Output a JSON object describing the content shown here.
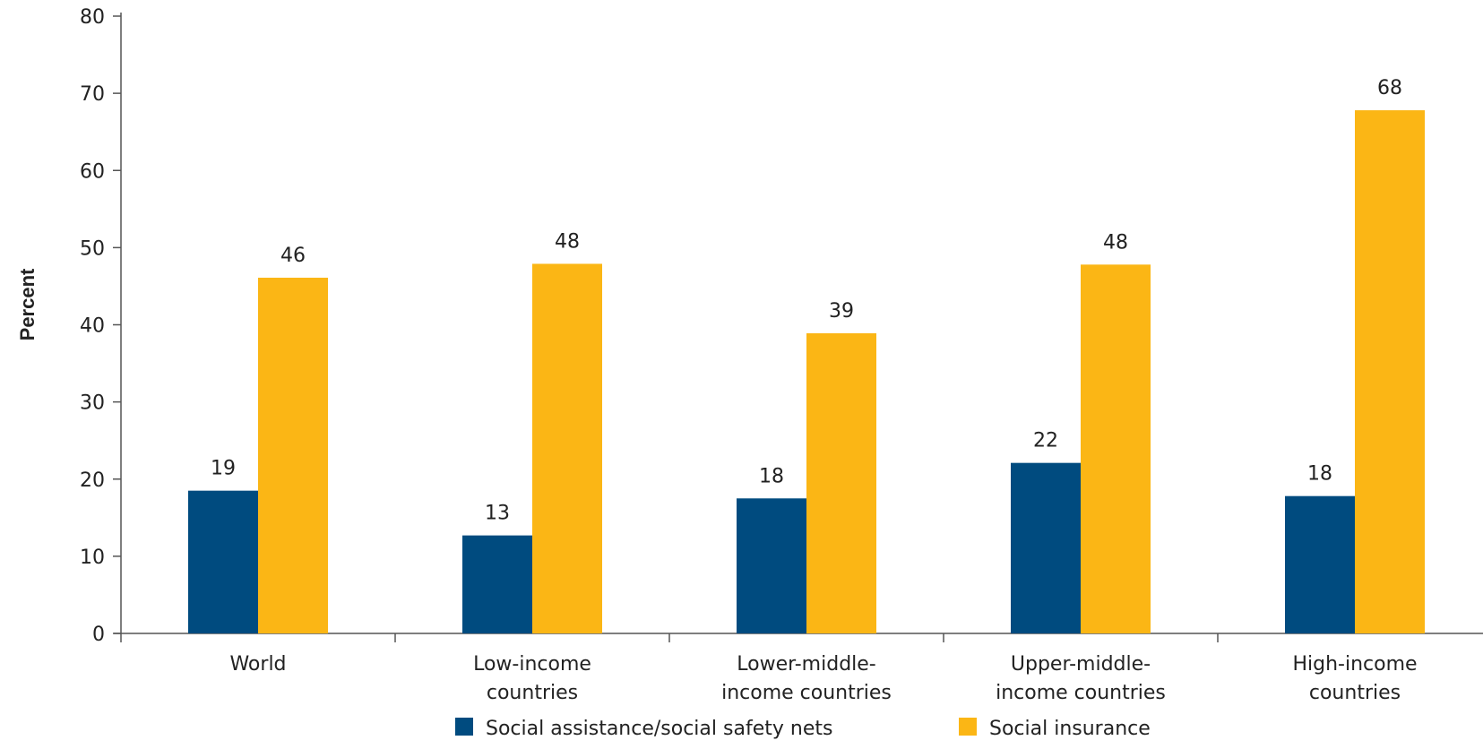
{
  "chart_data": {
    "type": "bar",
    "title": "",
    "xlabel": "",
    "ylabel": "Percent",
    "ylim": [
      0,
      80
    ],
    "yticks": [
      0,
      10,
      20,
      30,
      40,
      50,
      60,
      70,
      80
    ],
    "grid": false,
    "legend_position": "bottom",
    "categories": [
      [
        "World"
      ],
      [
        "Low-income",
        "countries"
      ],
      [
        "Lower-middle-",
        "income countries"
      ],
      [
        "Upper-middle-",
        "income countries"
      ],
      [
        "High-income",
        "countries"
      ]
    ],
    "series": [
      {
        "name": "Social assistance/social safety nets",
        "color": "#004b7f",
        "values": [
          18.5,
          12.7,
          17.5,
          22.1,
          17.8
        ],
        "labels": [
          "19",
          "13",
          "18",
          "22",
          "18"
        ]
      },
      {
        "name": "Social insurance",
        "color": "#fbb615",
        "values": [
          46.1,
          47.9,
          38.9,
          47.8,
          67.8
        ],
        "labels": [
          "46",
          "48",
          "39",
          "48",
          "68"
        ]
      }
    ]
  }
}
